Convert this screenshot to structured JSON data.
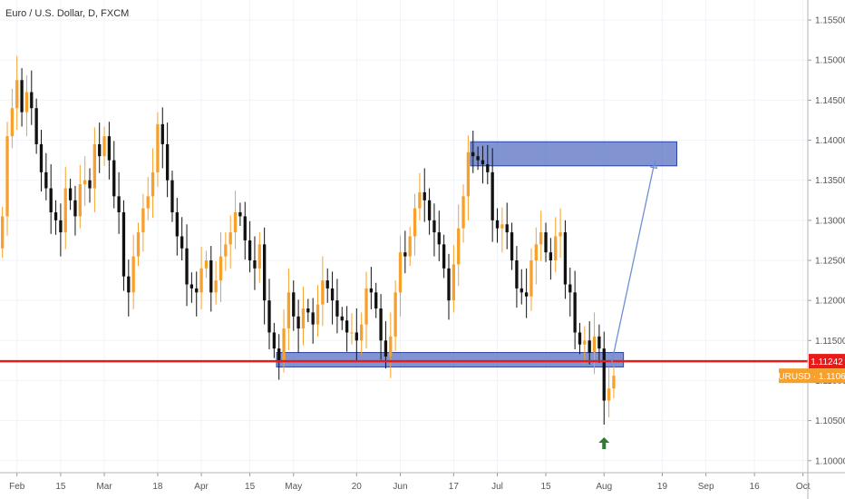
{
  "chart_data": {
    "type": "candlestick",
    "title": "Euro / U.S. Dollar, D, FXCM",
    "symbol": "EURUSD",
    "ylim": [
      1.0985,
      1.1575
    ],
    "y_ticks": [
      "1.15500",
      "1.15000",
      "1.14500",
      "1.14000",
      "1.13500",
      "1.13000",
      "1.12500",
      "1.12000",
      "1.11500",
      "1.11000",
      "1.10500",
      "1.10000"
    ],
    "x_ticks": [
      {
        "label": "Feb",
        "bar": 3
      },
      {
        "label": "15",
        "bar": 12
      },
      {
        "label": "Mar",
        "bar": 21
      },
      {
        "label": "18",
        "bar": 32
      },
      {
        "label": "Apr",
        "bar": 41
      },
      {
        "label": "15",
        "bar": 51
      },
      {
        "label": "May",
        "bar": 60
      },
      {
        "label": "20",
        "bar": 73
      },
      {
        "label": "Jun",
        "bar": 82
      },
      {
        "label": "17",
        "bar": 93
      },
      {
        "label": "Jul",
        "bar": 102
      },
      {
        "label": "15",
        "bar": 112
      },
      {
        "label": "Aug",
        "bar": 124
      },
      {
        "label": "19",
        "bar": 136
      },
      {
        "label": "Sep",
        "bar": 145
      },
      {
        "label": "16",
        "bar": 155
      },
      {
        "label": "Oct",
        "bar": 165
      }
    ],
    "x_range": [
      -0.5,
      166
    ],
    "closes": [
      1.1305,
      1.1405,
      1.144,
      1.1475,
      1.1435,
      1.146,
      1.144,
      1.1395,
      1.136,
      1.134,
      1.131,
      1.13,
      1.1285,
      1.134,
      1.1325,
      1.1305,
      1.1345,
      1.135,
      1.134,
      1.1395,
      1.138,
      1.1405,
      1.1375,
      1.133,
      1.131,
      1.123,
      1.121,
      1.1255,
      1.1285,
      1.1315,
      1.133,
      1.136,
      1.142,
      1.1395,
      1.135,
      1.131,
      1.128,
      1.1265,
      1.122,
      1.1215,
      1.121,
      1.124,
      1.125,
      1.121,
      1.1225,
      1.1255,
      1.127,
      1.1285,
      1.131,
      1.1305,
      1.1275,
      1.125,
      1.124,
      1.127,
      1.12,
      1.116,
      1.114,
      1.1125,
      1.1165,
      1.121,
      1.118,
      1.1165,
      1.119,
      1.1185,
      1.117,
      1.1195,
      1.1225,
      1.1215,
      1.12,
      1.118,
      1.1175,
      1.116,
      1.116,
      1.115,
      1.117,
      1.1215,
      1.121,
      1.119,
      1.115,
      1.113,
      1.1155,
      1.121,
      1.126,
      1.1255,
      1.128,
      1.1315,
      1.1335,
      1.1325,
      1.13,
      1.1285,
      1.127,
      1.124,
      1.12,
      1.1245,
      1.129,
      1.133,
      1.1385,
      1.138,
      1.1375,
      1.137,
      1.136,
      1.13,
      1.129,
      1.1295,
      1.1285,
      1.125,
      1.1215,
      1.121,
      1.1205,
      1.125,
      1.127,
      1.1285,
      1.126,
      1.125,
      1.128,
      1.1285,
      1.122,
      1.121,
      1.116,
      1.1145,
      1.115,
      1.1135,
      1.1155,
      1.114,
      1.1075,
      1.109,
      1.1106
    ],
    "current_price": "1.11060",
    "horizontal_line": {
      "value": "1.11242",
      "color": "#e81b1b"
    },
    "zones": [
      {
        "x0": 56.5,
        "x1": 128.0,
        "y0": 1.1117,
        "y1": 1.1135
      },
      {
        "x0": 96.5,
        "x1": 139.0,
        "y0": 1.1368,
        "y1": 1.1398
      }
    ],
    "projection": {
      "from": [
        125.5,
        1.112
      ],
      "to": [
        134.5,
        1.1375
      ]
    },
    "colors": {
      "up": "#f7a12c",
      "down": "#111111",
      "zone_fill": "#3d5ab8",
      "zone_stroke": "#2c45a3",
      "projection": "#6f8fd4",
      "price_label": "#f7a12c",
      "line_label": "#e81b1b",
      "arrow": "#2e7d32",
      "grid": "#f0f3fa",
      "axis_text": "#555555"
    },
    "marker": "up-arrow-icon"
  }
}
